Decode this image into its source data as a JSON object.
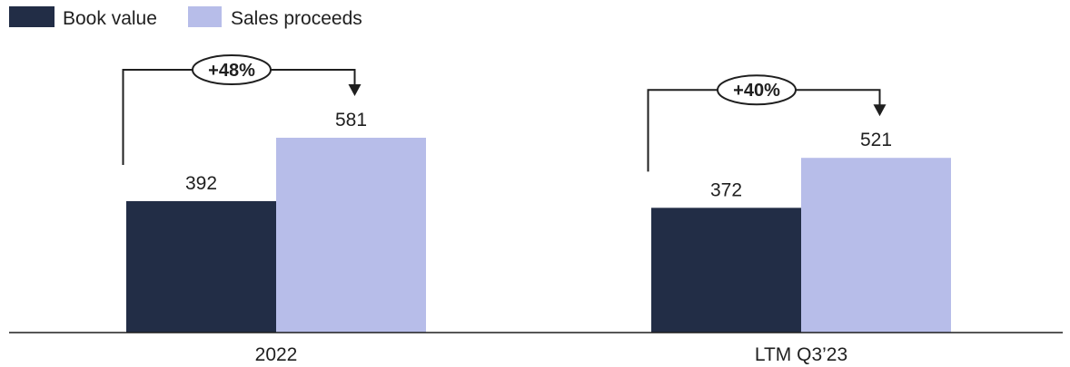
{
  "chart_data": {
    "type": "bar",
    "categories": [
      "2022",
      "LTM Q3’23"
    ],
    "series": [
      {
        "name": "Book value",
        "values": [
          392,
          372
        ],
        "color": "#222d46"
      },
      {
        "name": "Sales proceeds",
        "values": [
          581,
          521
        ],
        "color": "#b7bde9"
      }
    ],
    "annotations": [
      {
        "category": "2022",
        "text": "+48%"
      },
      {
        "category": "LTM Q3’23",
        "text": "+40%"
      }
    ],
    "title": "",
    "xlabel": "",
    "ylabel": "",
    "ylim": [
      0,
      581
    ],
    "grid": false,
    "legend_position": "top-left"
  }
}
